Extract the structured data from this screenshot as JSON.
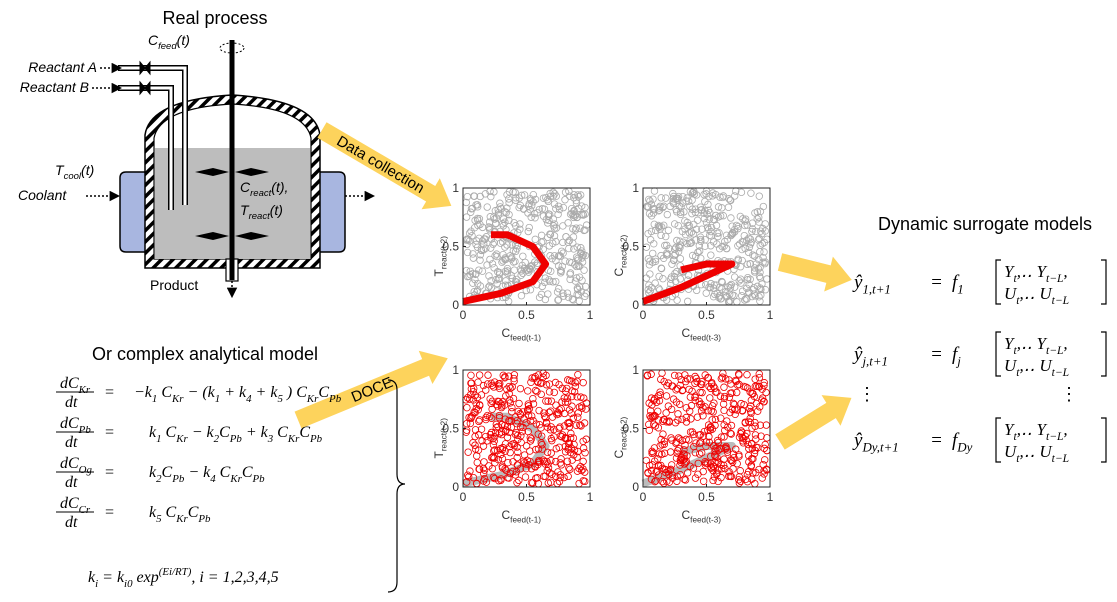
{
  "process": {
    "title": "Real process",
    "cfeed": [
      {
        "text": "C"
      },
      {
        "text": "feed",
        "sub": true
      },
      {
        "text": "(t)"
      }
    ],
    "reactant_a": "Reactant A",
    "reactant_b": "Reactant B",
    "tcool": [
      {
        "text": "T"
      },
      {
        "text": "cool",
        "sub": true
      },
      {
        "text": "(t)"
      }
    ],
    "coolant": "Coolant",
    "creact": [
      {
        "text": "C"
      },
      {
        "text": "react",
        "sub": true
      },
      {
        "text": "(t),"
      }
    ],
    "treact": [
      {
        "text": "T"
      },
      {
        "text": "react",
        "sub": true
      },
      {
        "text": "(t)"
      }
    ],
    "product": "Product"
  },
  "arrows": {
    "data_collection": "Data collection",
    "doce": "DOCE"
  },
  "plots": [
    {
      "xlabel": [
        {
          "text": "C"
        },
        {
          "text": "feed(t-1)",
          "sub": true
        }
      ],
      "ylabel": [
        {
          "text": "T"
        },
        {
          "text": "react(t-2)",
          "sub": true
        }
      ],
      "xlim": [
        0,
        1
      ],
      "ylim": [
        0,
        1
      ],
      "xticks": [
        0,
        0.5,
        1
      ],
      "yticks": [
        0,
        0.5,
        1
      ]
    },
    {
      "xlabel": [
        {
          "text": "C"
        },
        {
          "text": "feed(t-3)",
          "sub": true
        }
      ],
      "ylabel": [
        {
          "text": "C"
        },
        {
          "text": "react(t-2)",
          "sub": true
        }
      ],
      "xlim": [
        0,
        1
      ],
      "ylim": [
        0,
        1
      ],
      "xticks": [
        0,
        0.5,
        1
      ],
      "yticks": [
        0,
        0.5,
        1
      ]
    },
    {
      "xlabel": [
        {
          "text": "C"
        },
        {
          "text": "feed(t-1)",
          "sub": true
        }
      ],
      "ylabel": [
        {
          "text": "T"
        },
        {
          "text": "react(t-2)",
          "sub": true
        }
      ],
      "xlim": [
        0,
        1
      ],
      "ylim": [
        0,
        1
      ],
      "xticks": [
        0,
        0.5,
        1
      ],
      "yticks": [
        0,
        0.5,
        1
      ]
    },
    {
      "xlabel": [
        {
          "text": "C"
        },
        {
          "text": "feed(t-3)",
          "sub": true
        }
      ],
      "ylabel": [
        {
          "text": "C"
        },
        {
          "text": "react(t-2)",
          "sub": true
        }
      ],
      "xlim": [
        0,
        1
      ],
      "ylim": [
        0,
        1
      ],
      "xticks": [
        0,
        0.5,
        1
      ],
      "yticks": [
        0,
        0.5,
        1
      ]
    }
  ],
  "analytical": {
    "title": "Or complex analytical model",
    "equations": [
      {
        "num": [
          {
            "text": "dC"
          },
          {
            "text": "Kr",
            "sub": true
          }
        ],
        "den": "dt",
        "eq": "=",
        "rhs": [
          {
            "text": "−k"
          },
          {
            "text": "1",
            "sub": true
          },
          {
            "text": " C"
          },
          {
            "text": "Kr",
            "sub": true
          },
          {
            "text": " − (k"
          },
          {
            "text": "1",
            "sub": true
          },
          {
            "text": " + k"
          },
          {
            "text": "4",
            "sub": true
          },
          {
            "text": " + k"
          },
          {
            "text": "5",
            "sub": true
          },
          {
            "text": " ) C"
          },
          {
            "text": "Kr",
            "sub": true
          },
          {
            "text": "C"
          },
          {
            "text": "Pb",
            "sub": true
          }
        ]
      },
      {
        "num": [
          {
            "text": "dC"
          },
          {
            "text": "Pb",
            "sub": true
          }
        ],
        "den": "dt",
        "eq": "=",
        "rhs": [
          {
            "text": "k"
          },
          {
            "text": "1",
            "sub": true
          },
          {
            "text": " C"
          },
          {
            "text": "Kr",
            "sub": true
          },
          {
            "text": " − k"
          },
          {
            "text": "2",
            "sub": true
          },
          {
            "text": "C"
          },
          {
            "text": "Pb",
            "sub": true
          },
          {
            "text": " + k"
          },
          {
            "text": "3",
            "sub": true
          },
          {
            "text": " C"
          },
          {
            "text": "Kr",
            "sub": true
          },
          {
            "text": "C"
          },
          {
            "text": "Pb",
            "sub": true
          }
        ]
      },
      {
        "num": [
          {
            "text": "dC"
          },
          {
            "text": "Og",
            "sub": true
          }
        ],
        "den": "dt",
        "eq": "=",
        "rhs": [
          {
            "text": "k"
          },
          {
            "text": "2",
            "sub": true
          },
          {
            "text": "C"
          },
          {
            "text": "Pb",
            "sub": true
          },
          {
            "text": " − k"
          },
          {
            "text": "4",
            "sub": true
          },
          {
            "text": " C"
          },
          {
            "text": "Kr",
            "sub": true
          },
          {
            "text": "C"
          },
          {
            "text": "Pb",
            "sub": true
          }
        ]
      },
      {
        "num": [
          {
            "text": "dC"
          },
          {
            "text": "Cr",
            "sub": true
          }
        ],
        "den": "dt",
        "eq": "=",
        "rhs": [
          {
            "text": "k"
          },
          {
            "text": "5",
            "sub": true
          },
          {
            "text": " C"
          },
          {
            "text": "Kr",
            "sub": true
          },
          {
            "text": "C"
          },
          {
            "text": "Pb",
            "sub": true
          }
        ]
      }
    ],
    "rate": [
      {
        "text": "k"
      },
      {
        "text": "i",
        "sub": true
      },
      {
        "text": " = k"
      },
      {
        "text": "i0",
        "sub": true
      },
      {
        "text": " exp"
      },
      {
        "text": "(Ei/RT)",
        "sup": true
      },
      {
        "text": ",       i = 1,2,3,4,5"
      }
    ]
  },
  "surrogate": {
    "title": "Dynamic surrogate models",
    "models": [
      {
        "lhs": [
          {
            "text": "ŷ"
          },
          {
            "text": "1,t+1",
            "sub": true
          }
        ],
        "eq": "=",
        "f": [
          {
            "text": "f"
          },
          {
            "text": "1",
            "sub": true
          }
        ],
        "row1": [
          {
            "text": "Y"
          },
          {
            "text": "t",
            "sub": true
          },
          {
            "text": ",‥ Y"
          },
          {
            "text": "t−L",
            "sub": true
          },
          {
            "text": ","
          }
        ],
        "row2": [
          {
            "text": "U"
          },
          {
            "text": "t",
            "sub": true
          },
          {
            "text": ",‥ U"
          },
          {
            "text": "t−L",
            "sub": true
          }
        ]
      },
      {
        "lhs": [
          {
            "text": "ŷ"
          },
          {
            "text": "j,t+1",
            "sub": true
          }
        ],
        "eq": "=",
        "f": [
          {
            "text": "f"
          },
          {
            "text": "j",
            "sub": true
          }
        ],
        "row1": [
          {
            "text": "Y"
          },
          {
            "text": "t",
            "sub": true
          },
          {
            "text": ",‥ Y"
          },
          {
            "text": "t−L",
            "sub": true
          },
          {
            "text": ","
          }
        ],
        "row2": [
          {
            "text": "U"
          },
          {
            "text": "t",
            "sub": true
          },
          {
            "text": ",‥ U"
          },
          {
            "text": "t−L",
            "sub": true
          }
        ]
      },
      {
        "lhs": [
          {
            "text": "ŷ"
          },
          {
            "text": "Dy,t+1",
            "sub": true
          }
        ],
        "eq": "=",
        "f": [
          {
            "text": "f"
          },
          {
            "text": "Dy",
            "sub": true
          }
        ],
        "row1": [
          {
            "text": "Y"
          },
          {
            "text": "t",
            "sub": true
          },
          {
            "text": ",‥ Y"
          },
          {
            "text": "t−L",
            "sub": true
          },
          {
            "text": ","
          }
        ],
        "row2": [
          {
            "text": "U"
          },
          {
            "text": "t",
            "sub": true
          },
          {
            "text": ",‥ U"
          },
          {
            "text": "t−L",
            "sub": true
          }
        ]
      }
    ],
    "vdots": "⋮"
  }
}
